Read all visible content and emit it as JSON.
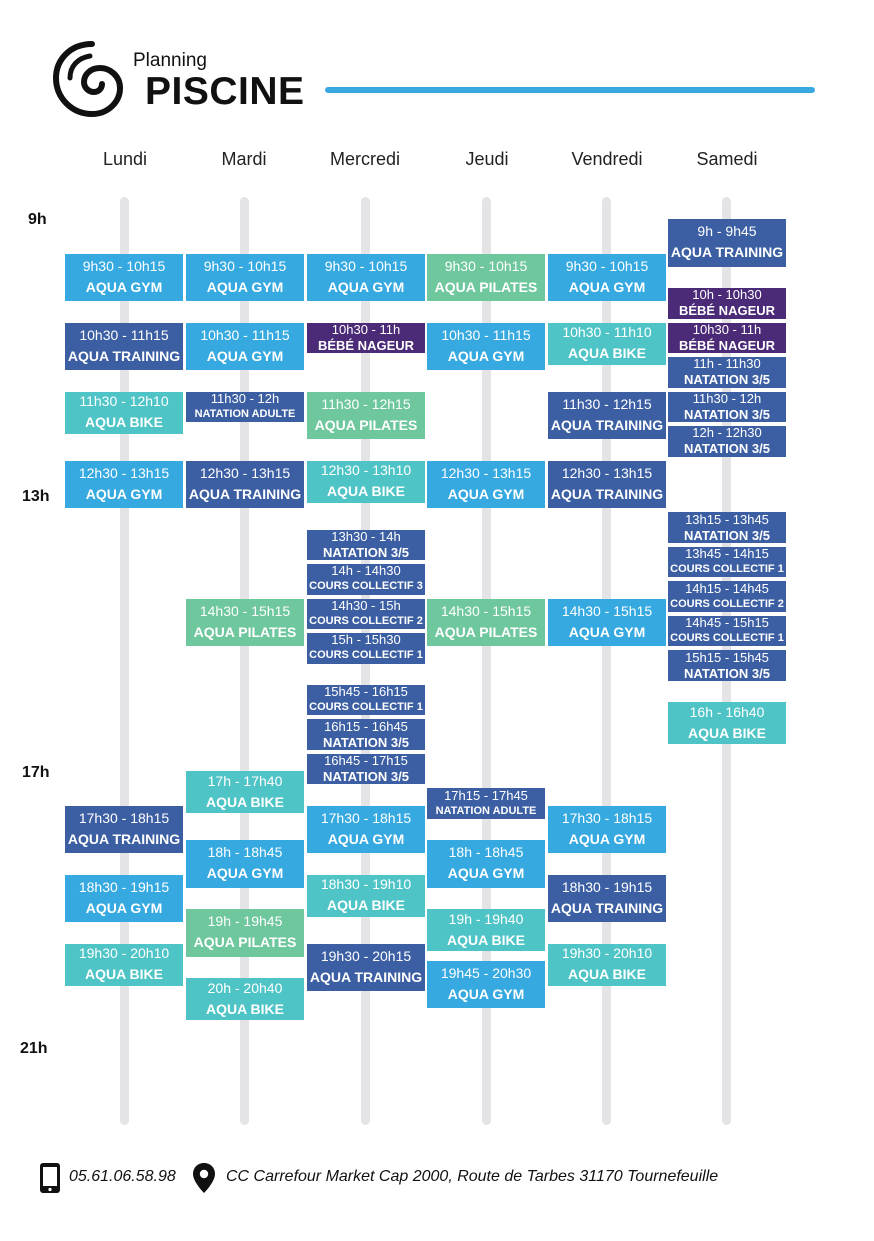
{
  "header": {
    "subtitle": "Planning",
    "title": "PISCINE",
    "accent_color": "#3aa8e0",
    "logo_icon": "spiral-logo-icon"
  },
  "days": [
    "Lundi",
    "Mardi",
    "Mercredi",
    "Jeudi",
    "Vendredi",
    "Samedi"
  ],
  "hours": [
    "9h",
    "13h",
    "17h",
    "21h"
  ],
  "colors": {
    "aqua-gym": "#35a9e0",
    "aqua-training": "#3c5fa3",
    "aqua-pilates": "#6fc79e",
    "aqua-bike": "#4fc4c6",
    "bebe-nageur": "#4b2a77",
    "natation": "#3c5fa3",
    "cours-collectif": "#3c5fa3",
    "natation-adulte": "#3c5fa3"
  },
  "schedule": [
    {
      "day": "Lundi",
      "sessions": [
        {
          "time": "9h30 - 10h15",
          "name": "AQUA GYM",
          "kind": "aqua-gym"
        },
        {
          "time": "10h30 - 11h15",
          "name": "AQUA TRAINING",
          "kind": "aqua-training"
        },
        {
          "time": "11h30 - 12h10",
          "name": "AQUA BIKE",
          "kind": "aqua-bike"
        },
        {
          "time": "12h30 - 13h15",
          "name": "AQUA GYM",
          "kind": "aqua-gym"
        },
        {
          "time": "17h30 - 18h15",
          "name": "AQUA TRAINING",
          "kind": "aqua-training"
        },
        {
          "time": "18h30 - 19h15",
          "name": "AQUA GYM",
          "kind": "aqua-gym"
        },
        {
          "time": "19h30 - 20h10",
          "name": "AQUA BIKE",
          "kind": "aqua-bike"
        }
      ]
    },
    {
      "day": "Mardi",
      "sessions": [
        {
          "time": "9h30 - 10h15",
          "name": "AQUA GYM",
          "kind": "aqua-gym"
        },
        {
          "time": "10h30 - 11h15",
          "name": "AQUA GYM",
          "kind": "aqua-gym"
        },
        {
          "time": "11h30 - 12h",
          "name": "NATATION ADULTE",
          "kind": "natation-adulte"
        },
        {
          "time": "12h30 - 13h15",
          "name": "AQUA TRAINING",
          "kind": "aqua-training"
        },
        {
          "time": "14h30 - 15h15",
          "name": "AQUA PILATES",
          "kind": "aqua-pilates"
        },
        {
          "time": "17h - 17h40",
          "name": "AQUA BIKE",
          "kind": "aqua-bike"
        },
        {
          "time": "18h - 18h45",
          "name": "AQUA GYM",
          "kind": "aqua-gym"
        },
        {
          "time": "19h - 19h45",
          "name": "AQUA PILATES",
          "kind": "aqua-pilates"
        },
        {
          "time": "20h - 20h40",
          "name": "AQUA BIKE",
          "kind": "aqua-bike"
        }
      ]
    },
    {
      "day": "Mercredi",
      "sessions": [
        {
          "time": "9h30 - 10h15",
          "name": "AQUA GYM",
          "kind": "aqua-gym"
        },
        {
          "time": "10h30 - 11h",
          "name": "BÉBÉ NAGEUR",
          "kind": "bebe-nageur"
        },
        {
          "time": "11h30 - 12h15",
          "name": "AQUA PILATES",
          "kind": "aqua-pilates"
        },
        {
          "time": "12h30 - 13h10",
          "name": "AQUA BIKE",
          "kind": "aqua-bike"
        },
        {
          "time": "13h30 - 14h",
          "name": "NATATION 3/5",
          "kind": "natation"
        },
        {
          "time": "14h - 14h30",
          "name": "COURS COLLECTIF 3",
          "kind": "cours-collectif"
        },
        {
          "time": "14h30 - 15h",
          "name": "COURS COLLECTIF 2",
          "kind": "cours-collectif"
        },
        {
          "time": "15h - 15h30",
          "name": "COURS COLLECTIF 1",
          "kind": "cours-collectif"
        },
        {
          "time": "15h45 - 16h15",
          "name": "COURS COLLECTIF 1",
          "kind": "cours-collectif"
        },
        {
          "time": "16h15 - 16h45",
          "name": "NATATION 3/5",
          "kind": "natation"
        },
        {
          "time": "16h45 - 17h15",
          "name": "NATATION 3/5",
          "kind": "natation"
        },
        {
          "time": "17h30 - 18h15",
          "name": "AQUA GYM",
          "kind": "aqua-gym"
        },
        {
          "time": "18h30 - 19h10",
          "name": "AQUA BIKE",
          "kind": "aqua-bike"
        },
        {
          "time": "19h30 - 20h15",
          "name": "AQUA TRAINING",
          "kind": "aqua-training"
        }
      ]
    },
    {
      "day": "Jeudi",
      "sessions": [
        {
          "time": "9h30 - 10h15",
          "name": "AQUA PILATES",
          "kind": "aqua-pilates"
        },
        {
          "time": "10h30 - 11h15",
          "name": "AQUA GYM",
          "kind": "aqua-gym"
        },
        {
          "time": "12h30 - 13h15",
          "name": "AQUA GYM",
          "kind": "aqua-gym"
        },
        {
          "time": "14h30 - 15h15",
          "name": "AQUA PILATES",
          "kind": "aqua-pilates"
        },
        {
          "time": "17h15 - 17h45",
          "name": "NATATION ADULTE",
          "kind": "natation-adulte"
        },
        {
          "time": "18h - 18h45",
          "name": "AQUA GYM",
          "kind": "aqua-gym"
        },
        {
          "time": "19h - 19h40",
          "name": "AQUA BIKE",
          "kind": "aqua-bike"
        },
        {
          "time": "19h45 - 20h30",
          "name": "AQUA GYM",
          "kind": "aqua-gym"
        }
      ]
    },
    {
      "day": "Vendredi",
      "sessions": [
        {
          "time": "9h30 - 10h15",
          "name": "AQUA GYM",
          "kind": "aqua-gym"
        },
        {
          "time": "10h30 - 11h10",
          "name": "AQUA BIKE",
          "kind": "aqua-bike"
        },
        {
          "time": "11h30 - 12h15",
          "name": "AQUA TRAINING",
          "kind": "aqua-training"
        },
        {
          "time": "12h30 - 13h15",
          "name": "AQUA TRAINING",
          "kind": "aqua-training"
        },
        {
          "time": "14h30 - 15h15",
          "name": "AQUA GYM",
          "kind": "aqua-gym"
        },
        {
          "time": "17h30 - 18h15",
          "name": "AQUA GYM",
          "kind": "aqua-gym"
        },
        {
          "time": "18h30 - 19h15",
          "name": "AQUA TRAINING",
          "kind": "aqua-training"
        },
        {
          "time": "19h30 - 20h10",
          "name": "AQUA BIKE",
          "kind": "aqua-bike"
        }
      ]
    },
    {
      "day": "Samedi",
      "sessions": [
        {
          "time": "9h - 9h45",
          "name": "AQUA TRAINING",
          "kind": "aqua-training"
        },
        {
          "time": "10h - 10h30",
          "name": "BÉBÉ NAGEUR",
          "kind": "bebe-nageur"
        },
        {
          "time": "10h30 - 11h",
          "name": "BÉBÉ NAGEUR",
          "kind": "bebe-nageur"
        },
        {
          "time": "11h - 11h30",
          "name": "NATATION 3/5",
          "kind": "natation"
        },
        {
          "time": "11h30 - 12h",
          "name": "NATATION 3/5",
          "kind": "natation"
        },
        {
          "time": "12h - 12h30",
          "name": "NATATION 3/5",
          "kind": "natation"
        },
        {
          "time": "13h15 - 13h45",
          "name": "NATATION 3/5",
          "kind": "natation"
        },
        {
          "time": "13h45 - 14h15",
          "name": "COURS COLLECTIF 1",
          "kind": "cours-collectif"
        },
        {
          "time": "14h15 - 14h45",
          "name": "COURS COLLECTIF 2",
          "kind": "cours-collectif"
        },
        {
          "time": "14h45 - 15h15",
          "name": "COURS COLLECTIF 1",
          "kind": "cours-collectif"
        },
        {
          "time": "15h15 - 15h45",
          "name": "NATATION 3/5",
          "kind": "natation"
        },
        {
          "time": "16h - 16h40",
          "name": "AQUA BIKE",
          "kind": "aqua-bike"
        }
      ]
    }
  ],
  "footer": {
    "phone_icon": "phone-icon",
    "phone": "05.61.06.58.98",
    "location_icon": "location-pin-icon",
    "address": "CC Carrefour Market Cap 2000, Route de Tarbes 31170 Tournefeuille"
  }
}
